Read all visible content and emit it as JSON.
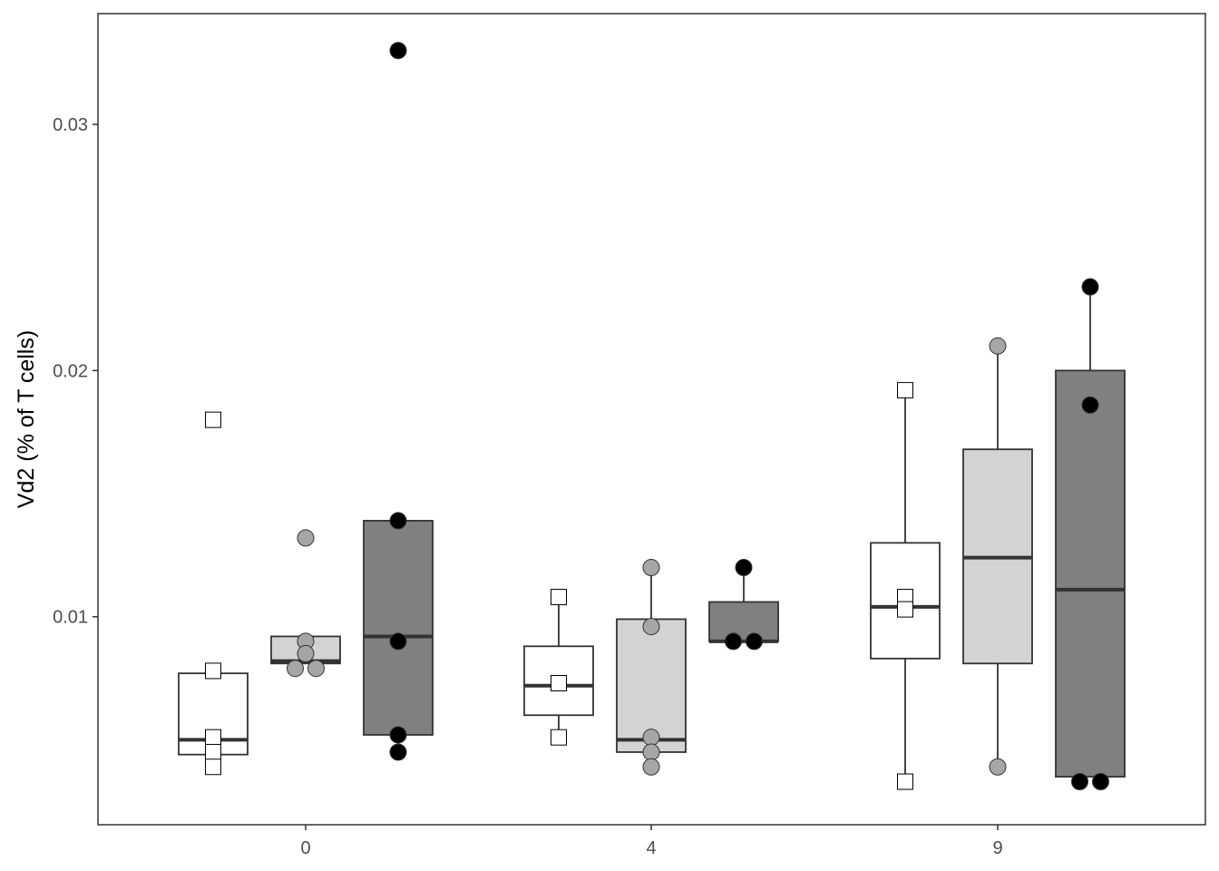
{
  "chart_data": {
    "type": "boxplot",
    "title": "",
    "xlabel": "",
    "ylabel": "Vd2 (% of T cells)",
    "x_ticks": [
      "0",
      "4",
      "9"
    ],
    "y_ticks": [
      0.01,
      0.02,
      0.03
    ],
    "y_tick_labels": [
      "0.01",
      "0.02",
      "0.03"
    ],
    "ylim": [
      0.00155,
      0.0345
    ],
    "grid": false,
    "legend": "none",
    "groups": [
      {
        "x_label": "0",
        "boxes": [
          {
            "fill": "#ffffff",
            "point_shape": "square",
            "point_fill": "#ffffff",
            "stats": {
              "lower_whisker": 0.0044,
              "q1": 0.0044,
              "median": 0.005,
              "q3": 0.0077,
              "upper_whisker": 0.0077
            },
            "points": [
              0.018,
              0.0078,
              0.0051,
              0.0045,
              0.0039
            ],
            "outliers": [
              0.018
            ]
          },
          {
            "fill": "#d3d3d3",
            "point_shape": "circle",
            "point_fill": "#a6a6a6",
            "stats": {
              "lower_whisker": 0.0081,
              "q1": 0.0081,
              "median": 0.0082,
              "q3": 0.0092,
              "upper_whisker": 0.0092
            },
            "points": [
              0.0132,
              0.009,
              0.0085,
              0.0079,
              0.0079
            ],
            "outliers": [
              0.0132
            ]
          },
          {
            "fill": "#808080",
            "point_shape": "circle",
            "point_fill": "#000000",
            "stats": {
              "lower_whisker": 0.0052,
              "q1": 0.0052,
              "median": 0.0092,
              "q3": 0.0139,
              "upper_whisker": 0.0139
            },
            "points": [
              0.033,
              0.0139,
              0.009,
              0.0052,
              0.0045
            ],
            "outliers": [
              0.033,
              0.0045
            ]
          }
        ]
      },
      {
        "x_label": "4",
        "boxes": [
          {
            "fill": "#ffffff",
            "point_shape": "square",
            "point_fill": "#ffffff",
            "stats": {
              "lower_whisker": 0.0051,
              "q1": 0.006,
              "median": 0.0072,
              "q3": 0.0088,
              "upper_whisker": 0.0108
            },
            "points": [
              0.0108,
              0.0073,
              0.0051
            ],
            "outliers": []
          },
          {
            "fill": "#d3d3d3",
            "point_shape": "circle",
            "point_fill": "#a6a6a6",
            "stats": {
              "lower_whisker": 0.0045,
              "q1": 0.0045,
              "median": 0.005,
              "q3": 0.0099,
              "upper_whisker": 0.012
            },
            "points": [
              0.012,
              0.0096,
              0.0051,
              0.0045,
              0.0039
            ],
            "outliers": [
              0.0039
            ]
          },
          {
            "fill": "#808080",
            "point_shape": "circle",
            "point_fill": "#000000",
            "stats": {
              "lower_whisker": 0.009,
              "q1": 0.009,
              "median": 0.009,
              "q3": 0.0106,
              "upper_whisker": 0.012
            },
            "points": [
              0.012,
              0.009,
              0.009
            ],
            "outliers": []
          }
        ]
      },
      {
        "x_label": "9",
        "boxes": [
          {
            "fill": "#ffffff",
            "point_shape": "square",
            "point_fill": "#ffffff",
            "stats": {
              "lower_whisker": 0.0033,
              "q1": 0.0083,
              "median": 0.0104,
              "q3": 0.013,
              "upper_whisker": 0.0192
            },
            "points": [
              0.0192,
              0.0108,
              0.0103,
              0.0033
            ],
            "outliers": []
          },
          {
            "fill": "#d3d3d3",
            "point_shape": "circle",
            "point_fill": "#a6a6a6",
            "stats": {
              "lower_whisker": 0.0039,
              "q1": 0.0081,
              "median": 0.0124,
              "q3": 0.0168,
              "upper_whisker": 0.021
            },
            "points": [
              0.021,
              0.0039
            ],
            "outliers": []
          },
          {
            "fill": "#808080",
            "point_shape": "circle",
            "point_fill": "#000000",
            "stats": {
              "lower_whisker": 0.0035,
              "q1": 0.0035,
              "median": 0.0111,
              "q3": 0.02,
              "upper_whisker": 0.0234
            },
            "points": [
              0.0234,
              0.0186,
              0.0033,
              0.0033
            ],
            "outliers": []
          }
        ]
      }
    ]
  }
}
